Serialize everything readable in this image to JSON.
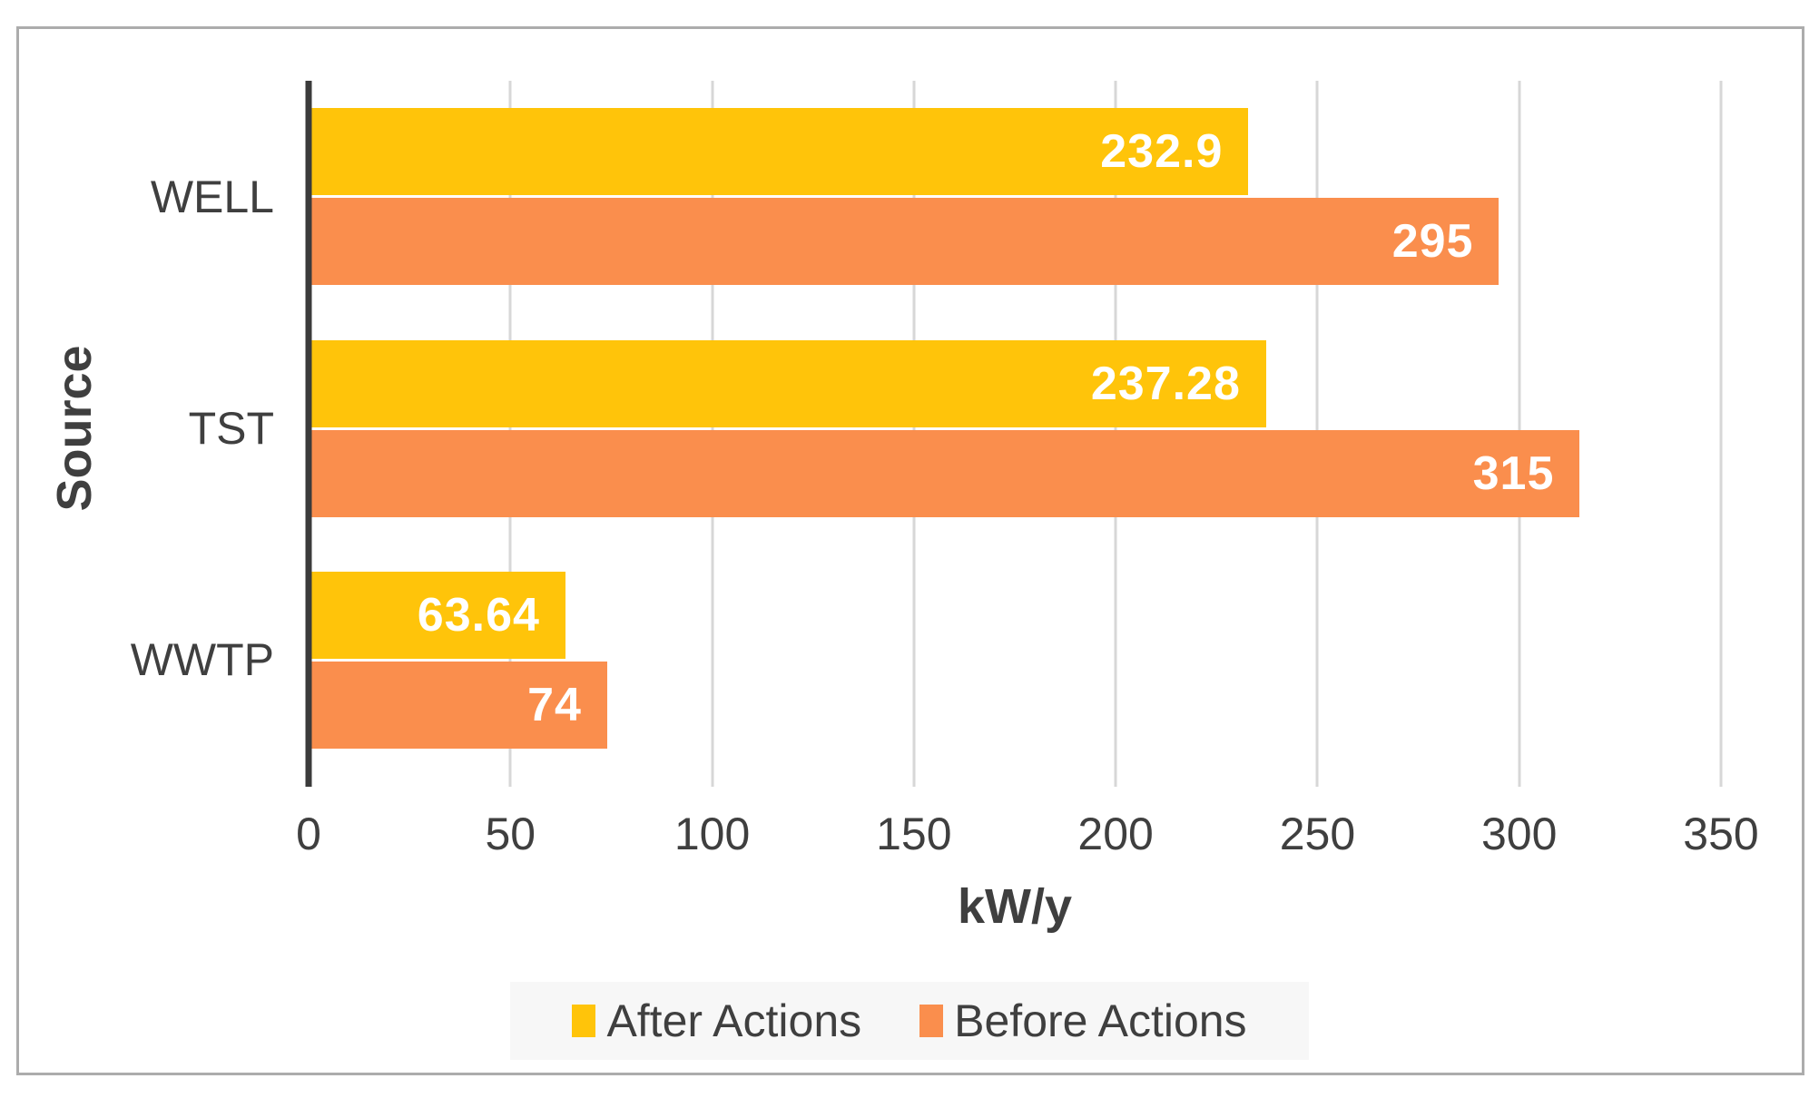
{
  "figure": {
    "border_color": "#acacac",
    "background": "#ffffff",
    "legend_background": "#f7f7f7",
    "axis_line_color": "#3b3b3b",
    "gridline_color": "#d7d7d7",
    "text_color": "#3f3f3f",
    "value_label_color": "#ffffff"
  },
  "chart_data": {
    "type": "bar",
    "orientation": "horizontal",
    "title": "",
    "xlabel": "kW/y",
    "ylabel": "Source",
    "categories": [
      "WELL",
      "TST",
      "WWTP"
    ],
    "series": [
      {
        "name": "After Actions",
        "color": "#ffc40a",
        "values": [
          232.9,
          237.28,
          63.64
        ],
        "value_labels": [
          "232.9",
          "237.28",
          "63.64"
        ]
      },
      {
        "name": "Before Actions",
        "color": "#fa8e4d",
        "values": [
          295,
          315,
          74
        ],
        "value_labels": [
          "295",
          "315",
          "74"
        ]
      }
    ],
    "xlim": [
      0,
      350
    ],
    "xticks": [
      0,
      50,
      100,
      150,
      200,
      250,
      300,
      350
    ],
    "grid": true,
    "value_labels_position": "inside-end",
    "legend_position": "bottom"
  }
}
